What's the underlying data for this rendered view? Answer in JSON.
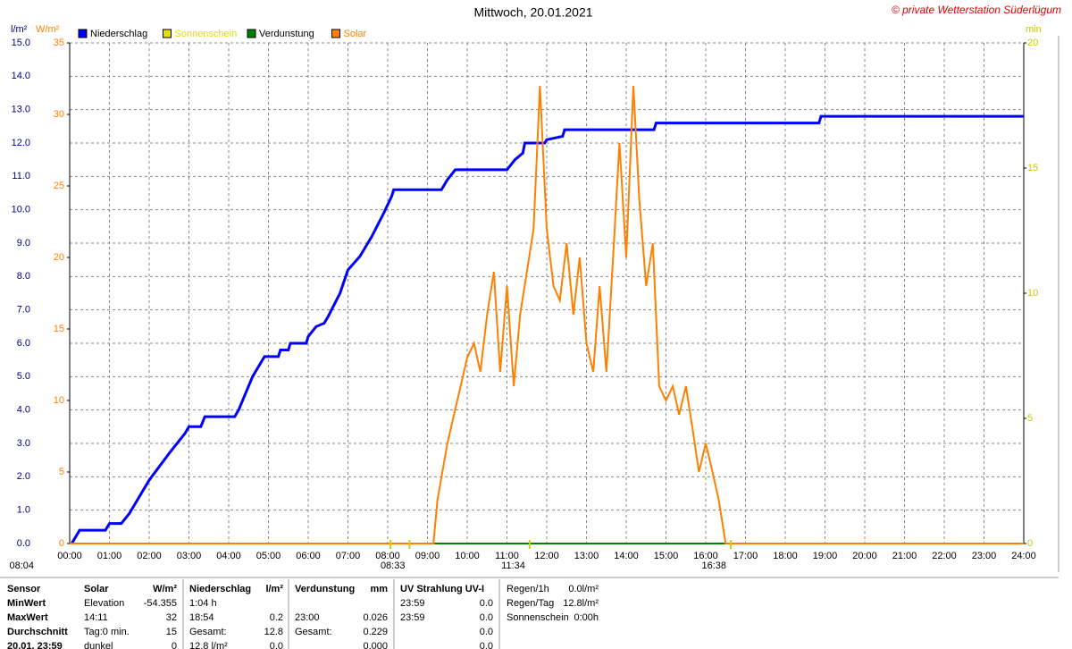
{
  "chart_data": {
    "type": "line",
    "title": "Mittwoch, 20.01.2021",
    "copyright": "© private Wetterstation Süderlügum",
    "ylabel": "l/m²",
    "y3label": "W/m²",
    "y2label": "min",
    "xlim": [
      0,
      24
    ],
    "xticks": [
      {
        "value": 0,
        "label": "00:00"
      },
      {
        "value": 1,
        "label": "01:00"
      },
      {
        "value": 2,
        "label": "02:00"
      },
      {
        "value": 3,
        "label": "03:00"
      },
      {
        "value": 4,
        "label": "04:00"
      },
      {
        "value": 5,
        "label": "05:00"
      },
      {
        "value": 6,
        "label": "06:00"
      },
      {
        "value": 7,
        "label": "07:00"
      },
      {
        "value": 8,
        "label": "08:00"
      },
      {
        "value": 9,
        "label": "09:00"
      },
      {
        "value": 10,
        "label": "10:00"
      },
      {
        "value": 11,
        "label": "11:00"
      },
      {
        "value": 12,
        "label": "12:00"
      },
      {
        "value": 13,
        "label": "13:00"
      },
      {
        "value": 14,
        "label": "14:00"
      },
      {
        "value": 15,
        "label": "15:00"
      },
      {
        "value": 16,
        "label": "16:00"
      },
      {
        "value": 17,
        "label": "17:00"
      },
      {
        "value": 18,
        "label": "18:00"
      },
      {
        "value": 19,
        "label": "19:00"
      },
      {
        "value": 20,
        "label": "20:00"
      },
      {
        "value": 21,
        "label": "21:00"
      },
      {
        "value": 22,
        "label": "22:00"
      },
      {
        "value": 23,
        "label": "23:00"
      },
      {
        "value": 24,
        "label": "24:00"
      }
    ],
    "ylim": [
      0,
      15
    ],
    "yticks": [
      {
        "value": 0,
        "label": "0.0"
      },
      {
        "value": 1,
        "label": "1.0"
      },
      {
        "value": 2,
        "label": "2.0"
      },
      {
        "value": 3,
        "label": "3.0"
      },
      {
        "value": 4,
        "label": "4.0"
      },
      {
        "value": 5,
        "label": "5.0"
      },
      {
        "value": 6,
        "label": "6.0"
      },
      {
        "value": 7,
        "label": "7.0"
      },
      {
        "value": 8,
        "label": "8.0"
      },
      {
        "value": 9,
        "label": "9.0"
      },
      {
        "value": 10,
        "label": "10.0"
      },
      {
        "value": 11,
        "label": "11.0"
      },
      {
        "value": 12,
        "label": "12.0"
      },
      {
        "value": 13,
        "label": "13.0"
      },
      {
        "value": 14,
        "label": "14.0"
      },
      {
        "value": 15,
        "label": "15.0"
      }
    ],
    "y3lim": [
      0,
      35
    ],
    "y3ticks": [
      0,
      5,
      10,
      15,
      20,
      25,
      30,
      35
    ],
    "y2lim": [
      0,
      20
    ],
    "y2ticks": [
      0,
      5,
      10,
      15,
      20
    ],
    "grid": true,
    "series": [
      {
        "name": "Niederschlag",
        "color": "#0000ff",
        "axis": "y",
        "x": [
          0.05,
          0.1,
          0.25,
          0.9,
          1.0,
          1.3,
          1.5,
          2.0,
          2.5,
          2.9,
          3.0,
          3.3,
          3.4,
          4.15,
          4.25,
          4.6,
          4.8,
          4.9,
          5.25,
          5.3,
          5.5,
          5.55,
          5.95,
          6.0,
          6.2,
          6.4,
          6.5,
          6.8,
          7.0,
          7.3,
          7.6,
          7.9,
          8.1,
          8.15,
          9.35,
          9.5,
          9.7,
          11.0,
          11.2,
          11.4,
          11.45,
          11.95,
          12.0,
          12.4,
          12.45,
          14.7,
          14.75,
          18.85,
          18.9,
          24.0
        ],
        "values": [
          0,
          0.1,
          0.4,
          0.4,
          0.6,
          0.6,
          0.9,
          1.9,
          2.7,
          3.3,
          3.5,
          3.5,
          3.8,
          3.8,
          4.0,
          5.0,
          5.4,
          5.6,
          5.6,
          5.8,
          5.8,
          6.0,
          6.0,
          6.2,
          6.5,
          6.6,
          6.8,
          7.5,
          8.2,
          8.6,
          9.2,
          9.9,
          10.4,
          10.6,
          10.6,
          10.9,
          11.2,
          11.2,
          11.5,
          11.7,
          12.0,
          12.0,
          12.1,
          12.2,
          12.4,
          12.4,
          12.6,
          12.6,
          12.8,
          12.8
        ]
      },
      {
        "name": "Sonnenschein",
        "color": "#e0e000",
        "axis": "y2",
        "x": [
          0,
          24
        ],
        "values": [
          0,
          0
        ]
      },
      {
        "name": "Verdunstung",
        "color": "#008000",
        "axis": "y",
        "x": [
          0,
          24
        ],
        "values": [
          0,
          0
        ]
      },
      {
        "name": "Solar",
        "color": "#ff8000",
        "axis": "y3",
        "x": [
          0,
          9.15,
          9.25,
          9.5,
          9.75,
          10.0,
          10.17,
          10.33,
          10.5,
          10.67,
          10.83,
          11.0,
          11.17,
          11.33,
          11.5,
          11.67,
          11.83,
          12.0,
          12.17,
          12.33,
          12.5,
          12.67,
          12.83,
          13.0,
          13.17,
          13.33,
          13.5,
          13.67,
          13.83,
          14.0,
          14.18,
          14.33,
          14.5,
          14.67,
          14.83,
          15.0,
          15.17,
          15.33,
          15.5,
          15.67,
          15.83,
          16.0,
          16.17,
          16.33,
          16.5,
          24.0
        ],
        "values": [
          0,
          0,
          3,
          7,
          10,
          13,
          14,
          12,
          16,
          19,
          12,
          18,
          11,
          16,
          19,
          22,
          32,
          22,
          18,
          17,
          21,
          16,
          20,
          14,
          12,
          18,
          12,
          20,
          28,
          20,
          32,
          24,
          18,
          21,
          11,
          10,
          11,
          9,
          11,
          8,
          5,
          7,
          5,
          3,
          0,
          0
        ]
      }
    ],
    "annotations": [
      {
        "text": "08:04",
        "x": 8.07
      },
      {
        "text": "08:33",
        "x": 8.55
      },
      {
        "text": "11:34",
        "x": 11.57
      },
      {
        "text": "16:38",
        "x": 16.63
      }
    ]
  },
  "table": {
    "rows": [
      {
        "sensor": "Sensor",
        "solar": "Solar",
        "solar_v": "W/m²",
        "nieder": "Niederschlag",
        "nieder_v": "l/m²",
        "verd": "Verdunstung",
        "verd_v": "mm",
        "uv": "UV Strahlung UV-I"
      },
      {
        "sensor": "MinWert",
        "solar": "Elevation",
        "solar_v": "-54.355",
        "nieder": "1:04 h",
        "uv": "23:59",
        "uv_v": "0.0"
      },
      {
        "sensor": "MaxWert",
        "solar": "14:11",
        "solar_v": "32",
        "nieder": "18:54",
        "nieder_v": "0.2",
        "verd": "23:00",
        "verd_v": "0.026",
        "uv": "23:59",
        "uv_v": "0.0"
      },
      {
        "sensor": "Durchschnitt",
        "solar": "Tag:0 min.",
        "solar_v": "15",
        "nieder": "Gesamt:",
        "nieder_v": "12.8",
        "verd": "Gesamt:",
        "verd_v": "0.229",
        "uv_v": "0.0"
      },
      {
        "sensor": "20.01. 23:59",
        "solar": "dunkel",
        "solar_v": "0",
        "nieder": "12.8 l/m²",
        "nieder_v": "0.0",
        "verd_v": "0.000",
        "uv_v": "0.0"
      }
    ],
    "summary": [
      {
        "label": "Regen/1h",
        "value": "0.0l/m²"
      },
      {
        "label": "Regen/Tag",
        "value": "12.8l/m²"
      },
      {
        "label": "Sonnenschein",
        "value": "0:00h"
      }
    ]
  }
}
